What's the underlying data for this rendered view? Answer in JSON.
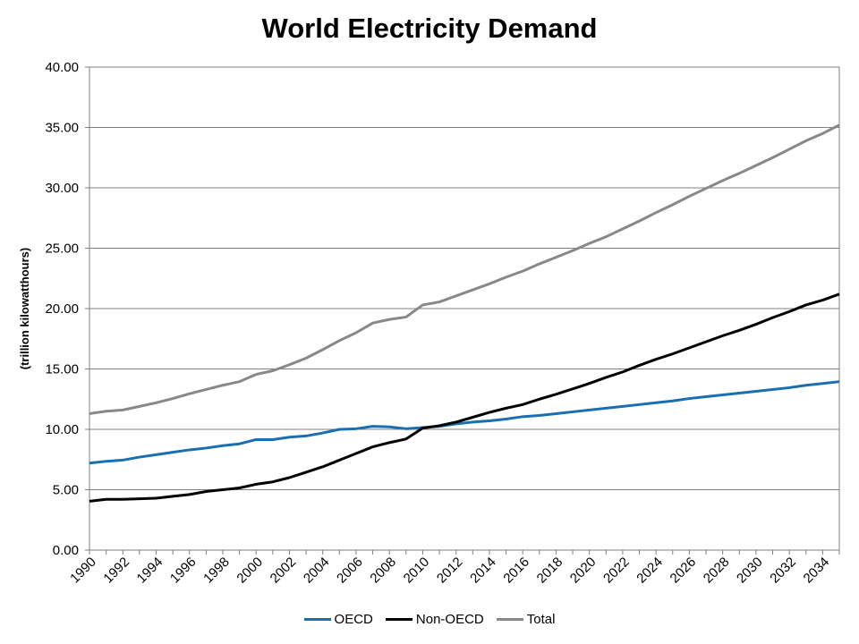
{
  "chart_data": {
    "type": "line",
    "title": "World Electricity Demand",
    "ylabel": "(trillion kilowatthours)",
    "xlabel": "",
    "ylim": [
      0,
      40
    ],
    "yticks": [
      "0.00",
      "5.00",
      "10.00",
      "15.00",
      "20.00",
      "25.00",
      "30.00",
      "35.00",
      "40.00"
    ],
    "xtick_labels": [
      "1990",
      "1992",
      "1994",
      "1996",
      "1998",
      "2000",
      "2002",
      "2004",
      "2006",
      "2008",
      "2010",
      "2012",
      "2014",
      "2016",
      "2018",
      "2020",
      "2022",
      "2024",
      "2026",
      "2028",
      "2030",
      "2032",
      "2034"
    ],
    "grid": "horizontal",
    "legend_position": "bottom",
    "x": [
      1990,
      1991,
      1992,
      1993,
      1994,
      1995,
      1996,
      1997,
      1998,
      1999,
      2000,
      2001,
      2002,
      2003,
      2004,
      2005,
      2006,
      2007,
      2008,
      2009,
      2010,
      2011,
      2012,
      2013,
      2014,
      2015,
      2016,
      2017,
      2018,
      2019,
      2020,
      2021,
      2022,
      2023,
      2024,
      2025,
      2026,
      2027,
      2028,
      2029,
      2030,
      2031,
      2032,
      2033,
      2034,
      2035
    ],
    "series": [
      {
        "name": "OECD",
        "color": "#1a6fb0",
        "values": [
          7.2,
          7.35,
          7.45,
          7.7,
          7.9,
          8.1,
          8.3,
          8.45,
          8.65,
          8.8,
          9.15,
          9.15,
          9.35,
          9.45,
          9.7,
          10.0,
          10.05,
          10.25,
          10.2,
          10.05,
          10.15,
          10.25,
          10.45,
          10.6,
          10.7,
          10.85,
          11.05,
          11.15,
          11.3,
          11.45,
          11.6,
          11.75,
          11.9,
          12.05,
          12.2,
          12.35,
          12.55,
          12.7,
          12.85,
          13.0,
          13.15,
          13.3,
          13.45,
          13.65,
          13.8,
          13.95
        ]
      },
      {
        "name": "Non-OECD",
        "color": "#000000",
        "values": [
          4.05,
          4.2,
          4.2,
          4.25,
          4.3,
          4.45,
          4.6,
          4.85,
          5.0,
          5.15,
          5.45,
          5.65,
          6.0,
          6.45,
          6.9,
          7.45,
          8.0,
          8.55,
          8.9,
          9.2,
          10.1,
          10.3,
          10.6,
          11.0,
          11.4,
          11.75,
          12.05,
          12.5,
          12.9,
          13.35,
          13.8,
          14.3,
          14.75,
          15.3,
          15.8,
          16.25,
          16.75,
          17.25,
          17.75,
          18.2,
          18.7,
          19.25,
          19.75,
          20.3,
          20.7,
          21.2
        ]
      },
      {
        "name": "Total",
        "color": "#888888",
        "values": [
          11.3,
          11.5,
          11.6,
          11.9,
          12.2,
          12.55,
          12.95,
          13.3,
          13.65,
          13.95,
          14.55,
          14.85,
          15.35,
          15.9,
          16.6,
          17.35,
          18.0,
          18.8,
          19.1,
          19.3,
          20.3,
          20.55,
          21.05,
          21.55,
          22.05,
          22.6,
          23.1,
          23.7,
          24.25,
          24.8,
          25.4,
          25.95,
          26.6,
          27.25,
          27.95,
          28.6,
          29.3,
          29.95,
          30.6,
          31.2,
          31.85,
          32.5,
          33.2,
          33.9,
          34.5,
          35.2
        ]
      }
    ]
  }
}
